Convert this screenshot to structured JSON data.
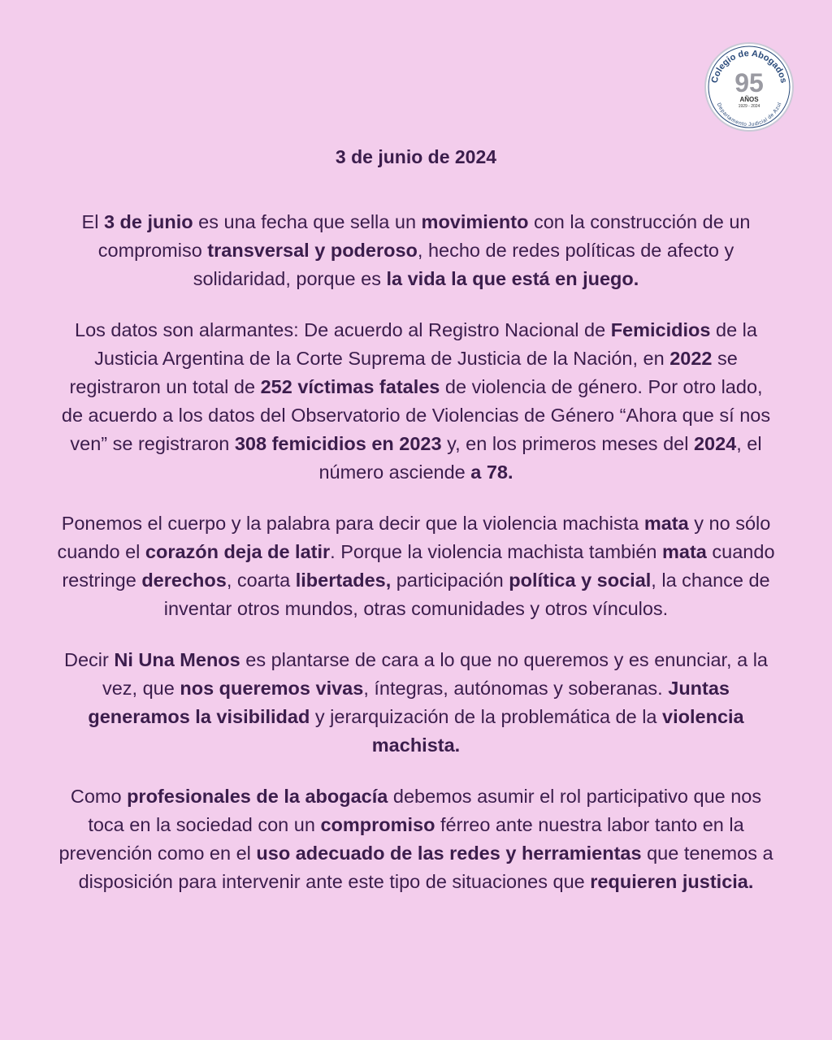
{
  "logo": {
    "text_top": "Colegio de Abogados",
    "number": "95",
    "anos": "AÑOS",
    "years": "1929 - 2024",
    "text_bottom": "Departamento Judicial de Azul"
  },
  "date": "3 de junio de 2024",
  "colors": {
    "background": "#f3cdec",
    "text": "#3b1d4c"
  },
  "paragraphs": [
    [
      {
        "t": "El "
      },
      {
        "t": "3 de junio",
        "b": true
      },
      {
        "t": " es una fecha que sella un "
      },
      {
        "t": "movimiento",
        "b": true
      },
      {
        "t": " con la construcción de un compromiso "
      },
      {
        "t": "transversal y poderoso",
        "b": true
      },
      {
        "t": ", hecho de redes políticas de afecto y solidaridad, porque es "
      },
      {
        "t": "la vida la que está en juego.",
        "b": true
      }
    ],
    [
      {
        "t": "Los datos son alarmantes: De acuerdo al Registro Nacional de "
      },
      {
        "t": "Femicidios",
        "b": true
      },
      {
        "t": " de la Justicia Argentina de la Corte Suprema de Justicia de la Nación, en "
      },
      {
        "t": "2022",
        "b": true
      },
      {
        "t": " se registraron un total de "
      },
      {
        "t": "252 víctimas fatales",
        "b": true
      },
      {
        "t": " de violencia de género. Por otro lado, de acuerdo a los datos del Observatorio de Violencias de Género “Ahora que sí nos ven” se registraron "
      },
      {
        "t": "308 femicidios en 2023",
        "b": true
      },
      {
        "t": " y, en los primeros meses del "
      },
      {
        "t": "2024",
        "b": true
      },
      {
        "t": ", el número asciende "
      },
      {
        "t": "a 78.",
        "b": true
      }
    ],
    [
      {
        "t": "Ponemos el cuerpo y la palabra para decir que la violencia machista "
      },
      {
        "t": "mata",
        "b": true
      },
      {
        "t": " y no sólo cuando el "
      },
      {
        "t": "corazón deja de latir",
        "b": true
      },
      {
        "t": ". Porque la violencia machista también "
      },
      {
        "t": "mata",
        "b": true
      },
      {
        "t": " cuando restringe "
      },
      {
        "t": "derechos",
        "b": true
      },
      {
        "t": ", coarta "
      },
      {
        "t": "libertades,",
        "b": true
      },
      {
        "t": " participación "
      },
      {
        "t": "política y social",
        "b": true
      },
      {
        "t": ", la chance de inventar otros mundos, otras comunidades y otros vínculos."
      }
    ],
    [
      {
        "t": "Decir "
      },
      {
        "t": "Ni Una Menos",
        "b": true
      },
      {
        "t": " es plantarse de cara a lo que no queremos y es enunciar, a la vez, que "
      },
      {
        "t": "nos queremos vivas",
        "b": true
      },
      {
        "t": ", íntegras, autónomas y soberanas. "
      },
      {
        "t": "Juntas generamos la visibilidad",
        "b": true
      },
      {
        "t": " y jerarquización de la problemática de la "
      },
      {
        "t": "violencia machista.",
        "b": true
      }
    ],
    [
      {
        "t": "Como "
      },
      {
        "t": "profesionales de la abogacía",
        "b": true
      },
      {
        "t": " debemos asumir el rol participativo que nos toca en la sociedad con un "
      },
      {
        "t": "compromiso",
        "b": true
      },
      {
        "t": " férreo ante nuestra labor tanto en la prevención como en el "
      },
      {
        "t": "uso adecuado de las redes y herramientas",
        "b": true
      },
      {
        "t": " que tenemos a disposición para intervenir ante este tipo de situaciones que "
      },
      {
        "t": "requieren justicia.",
        "b": true
      }
    ]
  ]
}
